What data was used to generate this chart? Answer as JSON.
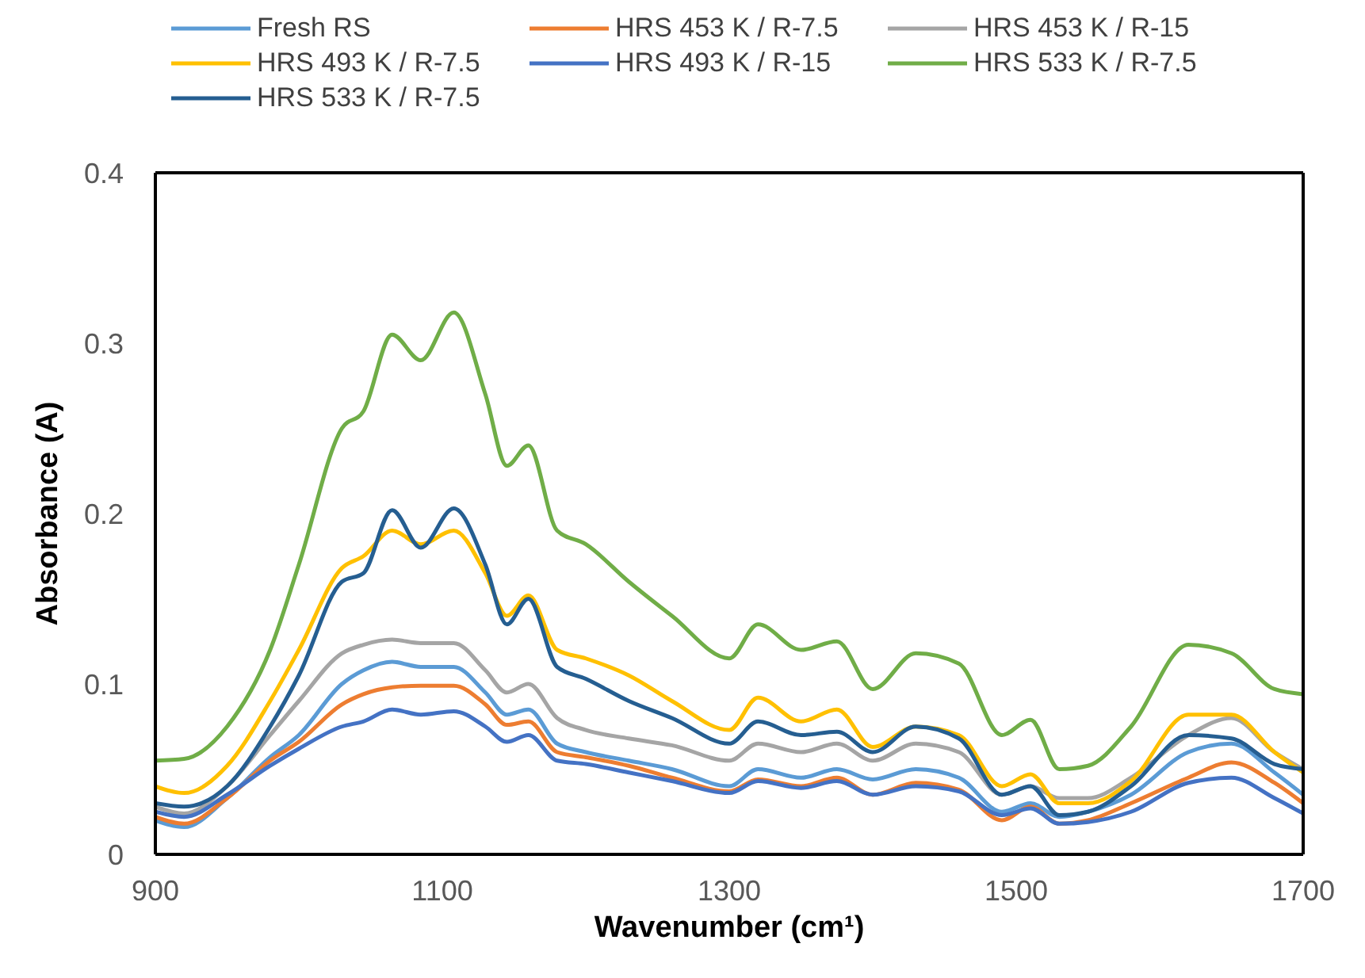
{
  "chart_data": {
    "type": "line",
    "xlabel": "Wavenumber (cm¹)",
    "ylabel": "Absorbance (A)",
    "legend": "top",
    "xlim": [
      900,
      1700
    ],
    "xticks": [
      900,
      1100,
      1300,
      1500,
      1700
    ],
    "ylim": [
      0,
      0.4
    ],
    "yticks": [
      0,
      0.1,
      0.2,
      0.3,
      0.4
    ],
    "x": [
      900,
      920,
      950,
      980,
      1000,
      1030,
      1045,
      1065,
      1085,
      1108,
      1130,
      1145,
      1160,
      1180,
      1200,
      1230,
      1260,
      1300,
      1320,
      1350,
      1375,
      1400,
      1430,
      1460,
      1490,
      1510,
      1530,
      1550,
      1580,
      1620,
      1650,
      1680,
      1700
    ],
    "series": [
      {
        "name": "Fresh RS",
        "color": "#5b9bd5",
        "values": [
          0.02,
          0.016,
          0.033,
          0.057,
          0.07,
          0.1,
          0.108,
          0.113,
          0.11,
          0.11,
          0.095,
          0.082,
          0.085,
          0.065,
          0.06,
          0.055,
          0.05,
          0.04,
          0.05,
          0.045,
          0.05,
          0.044,
          0.05,
          0.045,
          0.025,
          0.03,
          0.022,
          0.025,
          0.035,
          0.06,
          0.065,
          0.048,
          0.035
        ]
      },
      {
        "name": "HRS 453 K / R-7.5",
        "color": "#ed7d31",
        "values": [
          0.022,
          0.018,
          0.033,
          0.055,
          0.066,
          0.088,
          0.094,
          0.098,
          0.099,
          0.099,
          0.088,
          0.076,
          0.078,
          0.06,
          0.057,
          0.052,
          0.045,
          0.037,
          0.044,
          0.04,
          0.045,
          0.035,
          0.042,
          0.038,
          0.02,
          0.028,
          0.018,
          0.02,
          0.03,
          0.045,
          0.054,
          0.042,
          0.03
        ]
      },
      {
        "name": "HRS 453 K / R-15",
        "color": "#a5a5a5",
        "values": [
          0.028,
          0.024,
          0.04,
          0.07,
          0.09,
          0.118,
          0.123,
          0.126,
          0.124,
          0.124,
          0.108,
          0.095,
          0.1,
          0.08,
          0.073,
          0.068,
          0.064,
          0.055,
          0.065,
          0.06,
          0.065,
          0.055,
          0.065,
          0.06,
          0.035,
          0.04,
          0.033,
          0.033,
          0.045,
          0.07,
          0.08,
          0.06,
          0.05
        ]
      },
      {
        "name": "HRS 493 K / R-7.5",
        "color": "#ffc000",
        "values": [
          0.04,
          0.036,
          0.052,
          0.09,
          0.12,
          0.168,
          0.175,
          0.19,
          0.182,
          0.19,
          0.165,
          0.14,
          0.152,
          0.12,
          0.115,
          0.105,
          0.09,
          0.073,
          0.092,
          0.078,
          0.085,
          0.063,
          0.075,
          0.07,
          0.04,
          0.047,
          0.03,
          0.03,
          0.043,
          0.082,
          0.082,
          0.06,
          0.048
        ]
      },
      {
        "name": "HRS 493 K / R-15",
        "color": "#4472c4",
        "values": [
          0.025,
          0.022,
          0.035,
          0.052,
          0.062,
          0.075,
          0.078,
          0.085,
          0.082,
          0.084,
          0.075,
          0.066,
          0.07,
          0.055,
          0.053,
          0.048,
          0.043,
          0.036,
          0.043,
          0.039,
          0.043,
          0.035,
          0.04,
          0.037,
          0.023,
          0.027,
          0.018,
          0.019,
          0.025,
          0.042,
          0.045,
          0.033,
          0.024
        ]
      },
      {
        "name": "HRS 533 K / R-7.5",
        "color": "#70ad47",
        "values": [
          0.055,
          0.056,
          0.075,
          0.12,
          0.17,
          0.25,
          0.26,
          0.305,
          0.29,
          0.318,
          0.27,
          0.228,
          0.24,
          0.19,
          0.182,
          0.16,
          0.14,
          0.115,
          0.135,
          0.12,
          0.125,
          0.097,
          0.118,
          0.112,
          0.07,
          0.079,
          0.05,
          0.052,
          0.075,
          0.123,
          0.118,
          0.097,
          0.094
        ]
      },
      {
        "name": "HRS 533 K / R-7.5",
        "color": "#255e91",
        "values": [
          0.03,
          0.028,
          0.04,
          0.075,
          0.105,
          0.16,
          0.165,
          0.202,
          0.18,
          0.203,
          0.17,
          0.135,
          0.15,
          0.11,
          0.103,
          0.09,
          0.08,
          0.065,
          0.078,
          0.07,
          0.072,
          0.06,
          0.075,
          0.068,
          0.035,
          0.04,
          0.023,
          0.025,
          0.04,
          0.07,
          0.068,
          0.053,
          0.05
        ]
      }
    ]
  }
}
